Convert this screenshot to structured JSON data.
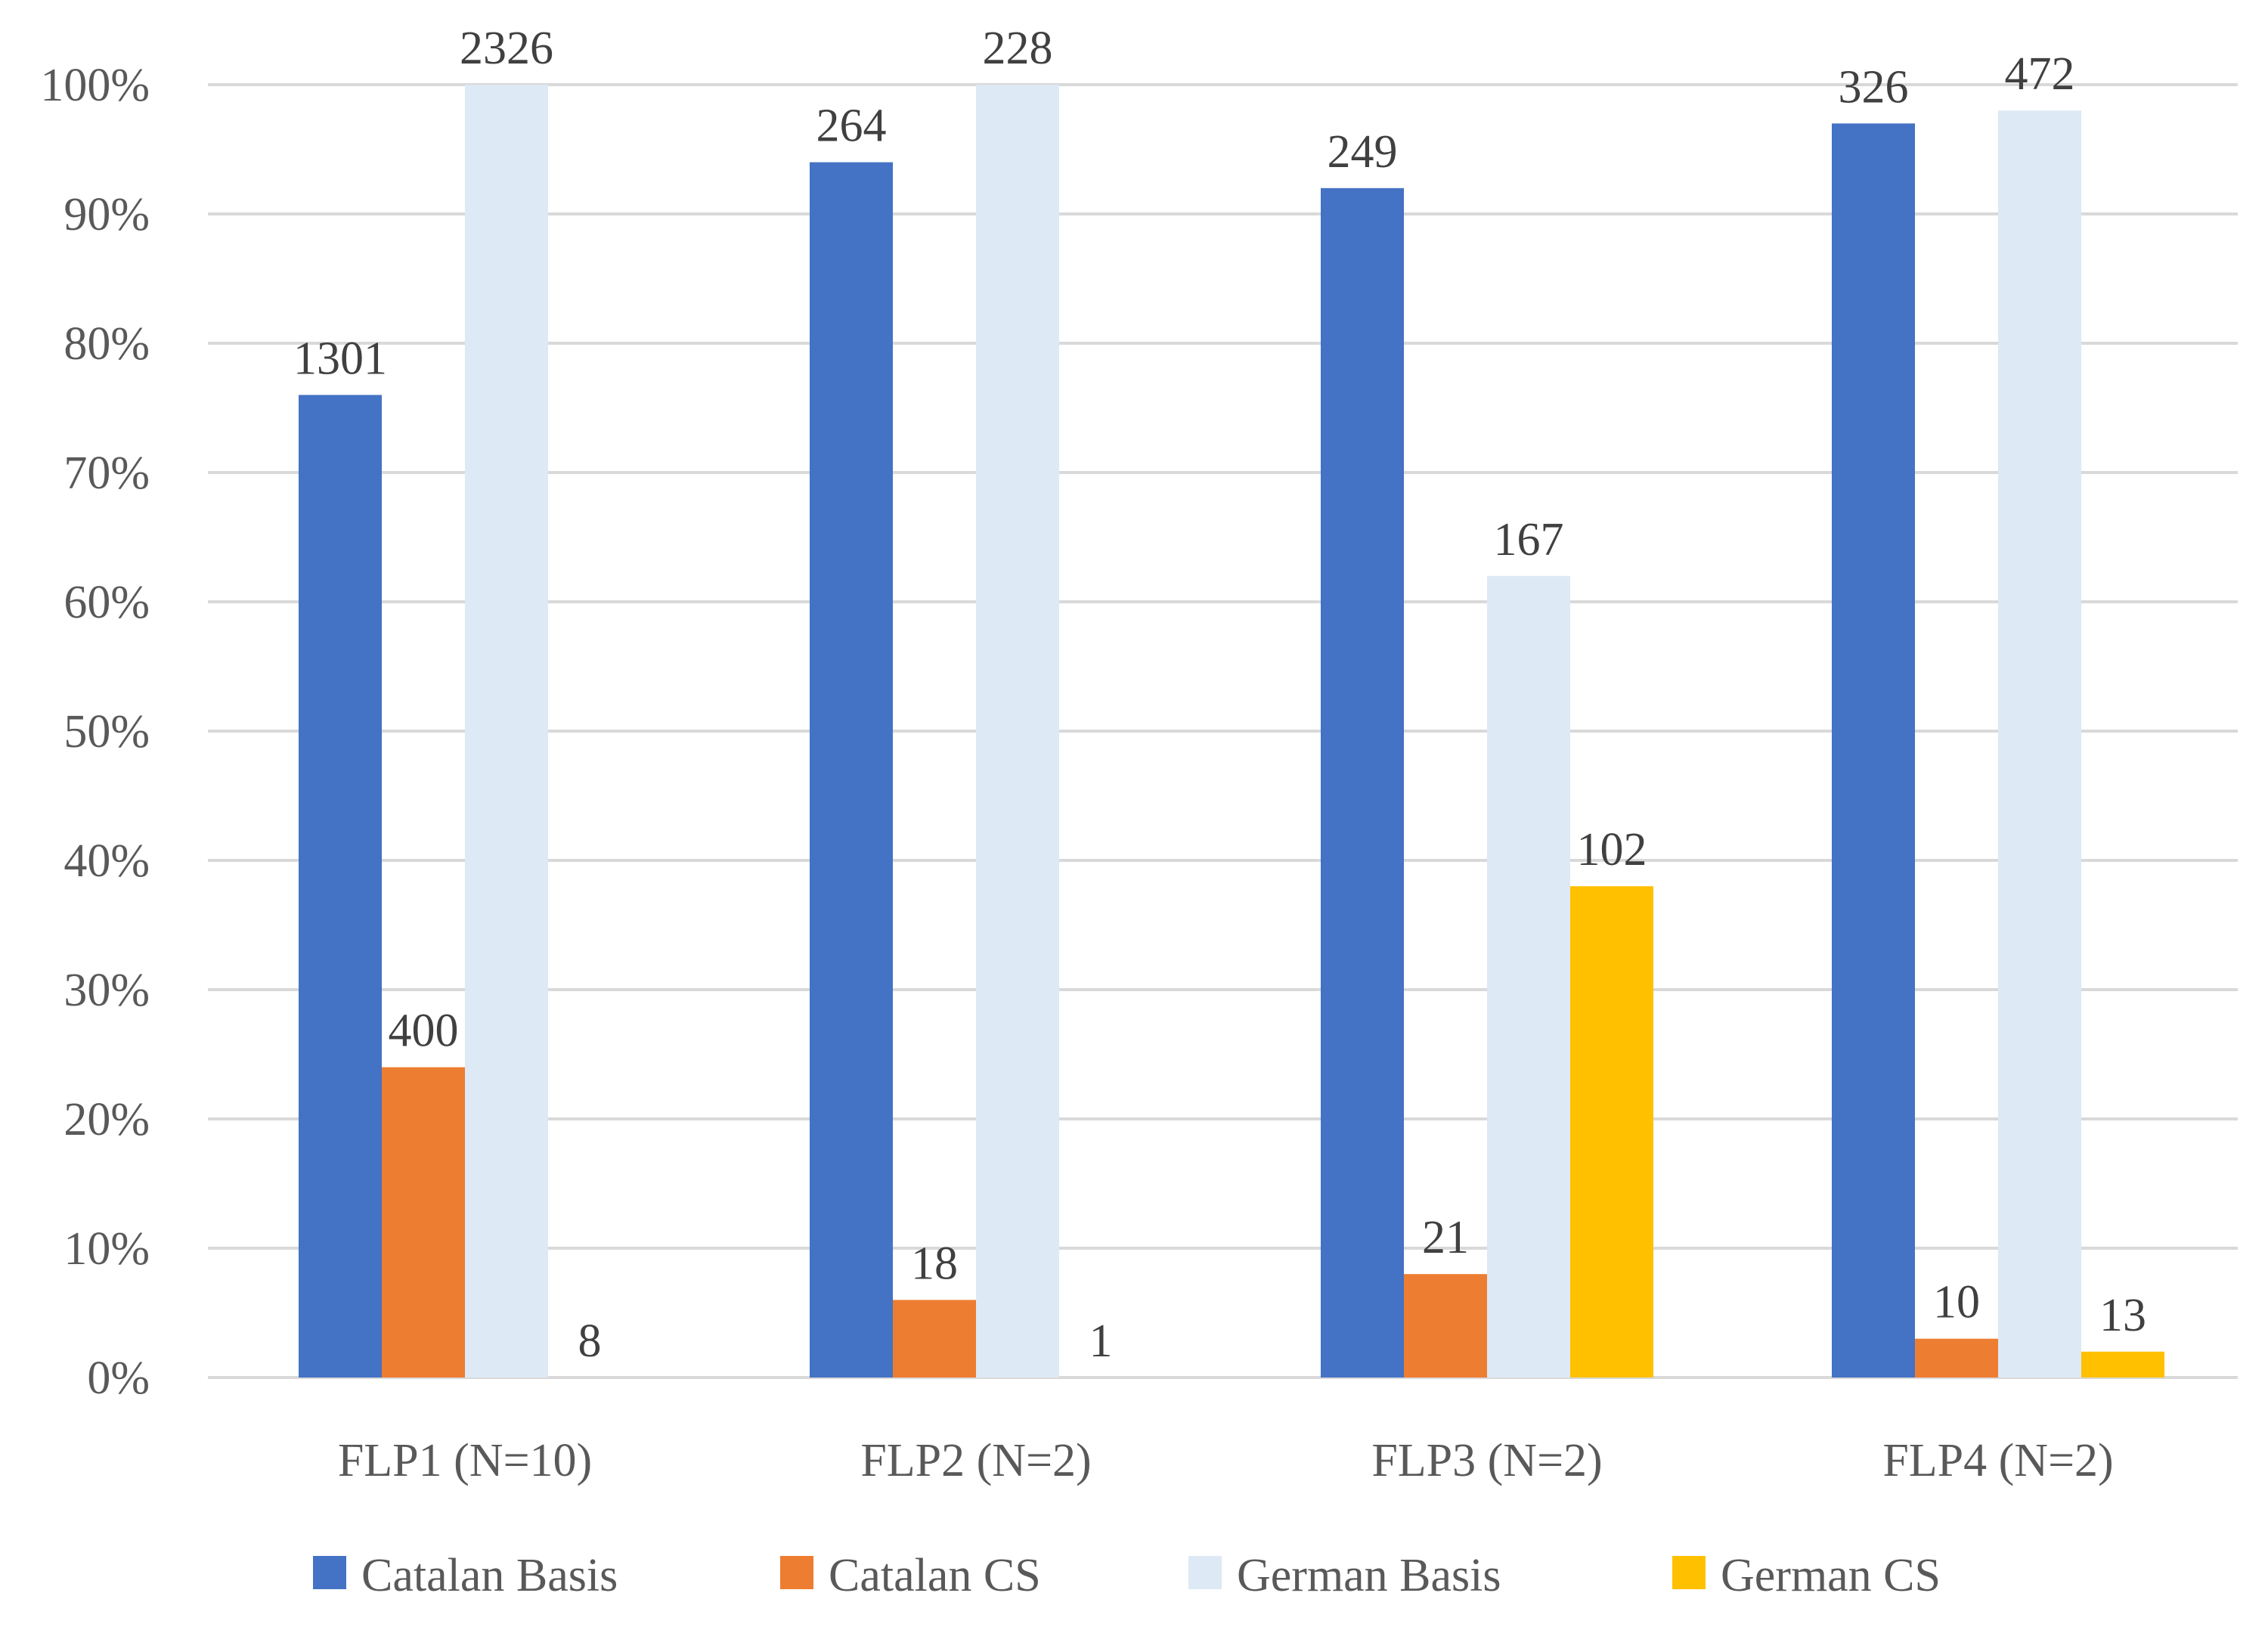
{
  "chart_data": {
    "type": "bar",
    "title": "",
    "xlabel": "",
    "ylabel": "",
    "categories": [
      "FLP1 (N=10)",
      "FLP2 (N=2)",
      "FLP3 (N=2)",
      "FLP4 (N=2)"
    ],
    "y_ticks": [
      "0%",
      "10%",
      "20%",
      "30%",
      "40%",
      "50%",
      "60%",
      "70%",
      "80%",
      "90%",
      "100%"
    ],
    "ylim": [
      0,
      100
    ],
    "grid": true,
    "legend_position": "bottom",
    "series": [
      {
        "name": "Catalan Basis",
        "color": "#4472c4",
        "values": [
          76,
          94,
          92,
          97
        ],
        "labels": [
          "1301",
          "264",
          "249",
          "326"
        ]
      },
      {
        "name": "Catalan CS",
        "color": "#ed7d31",
        "values": [
          24,
          6,
          8,
          3
        ],
        "labels": [
          "400",
          "18",
          "21",
          "10"
        ]
      },
      {
        "name": "German Basis",
        "color": "#dde9f5",
        "values": [
          100,
          100,
          62,
          98
        ],
        "labels": [
          "2326",
          "228",
          "167",
          "472"
        ]
      },
      {
        "name": "German CS",
        "color": "#ffc000",
        "values": [
          0,
          0,
          38,
          2
        ],
        "labels": [
          "8",
          "1",
          "102",
          "13"
        ]
      }
    ]
  }
}
